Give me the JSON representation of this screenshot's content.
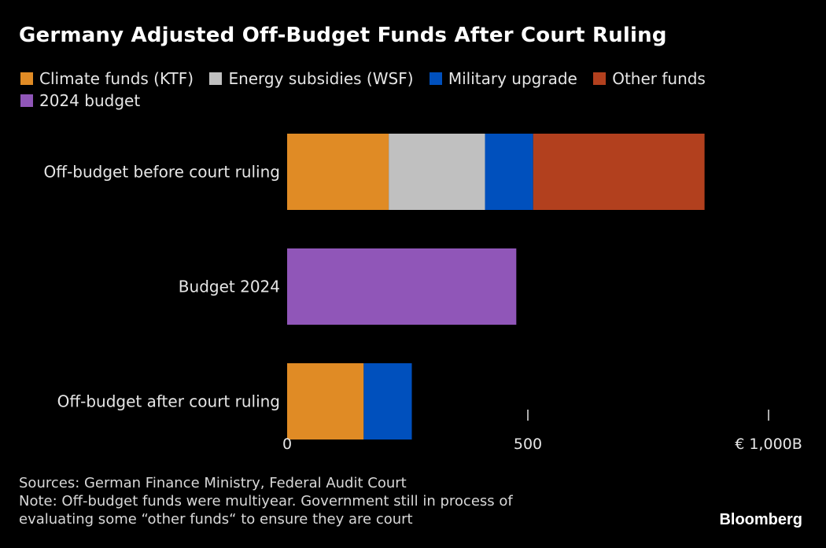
{
  "chart_data": {
    "type": "bar",
    "orientation": "horizontal",
    "stacked": true,
    "title": "Germany Adjusted Off-Budget Funds After Court Ruling",
    "categories": [
      "Off-budget before court ruling",
      "Budget 2024",
      "Off-budget after court ruling"
    ],
    "series": [
      {
        "name": "Climate funds (KTF)",
        "color": "#e08b25",
        "values": [
          211,
          0,
          159
        ]
      },
      {
        "name": "Energy subsidies (WSF)",
        "color": "#c0c0c0",
        "values": [
          200,
          0,
          0
        ]
      },
      {
        "name": "Military upgrade",
        "color": "#0050bd",
        "values": [
          100,
          0,
          100
        ]
      },
      {
        "name": "Other funds",
        "color": "#b2401e",
        "values": [
          356,
          0,
          0
        ]
      },
      {
        "name": "2024 budget",
        "color": "#9056b8",
        "values": [
          0,
          476,
          0
        ]
      }
    ],
    "xlabel": "",
    "ylabel": "",
    "xlim": [
      0,
      1000
    ],
    "ticks": [
      {
        "value": 0,
        "label": "0"
      },
      {
        "value": 500,
        "label": "500"
      },
      {
        "value": 1000,
        "label": "€ 1,000B"
      }
    ],
    "unit": "€ billions",
    "grid": false,
    "legend_position": "top-left"
  },
  "legend": [
    {
      "label": "Climate funds (KTF)",
      "color": "#e08b25"
    },
    {
      "label": "Energy subsidies (WSF)",
      "color": "#c0c0c0"
    },
    {
      "label": "Military upgrade",
      "color": "#0050bd"
    },
    {
      "label": "Other funds",
      "color": "#b2401e"
    },
    {
      "label": "2024 budget",
      "color": "#9056b8"
    }
  ],
  "footer": {
    "sources": "Sources: German Finance Ministry, Federal Audit Court",
    "note_line1": "Note: Off-budget funds were multiyear. Government still in process of",
    "note_line2": "evaluating some “other funds“ to ensure they are court"
  },
  "brand": "Bloomberg"
}
